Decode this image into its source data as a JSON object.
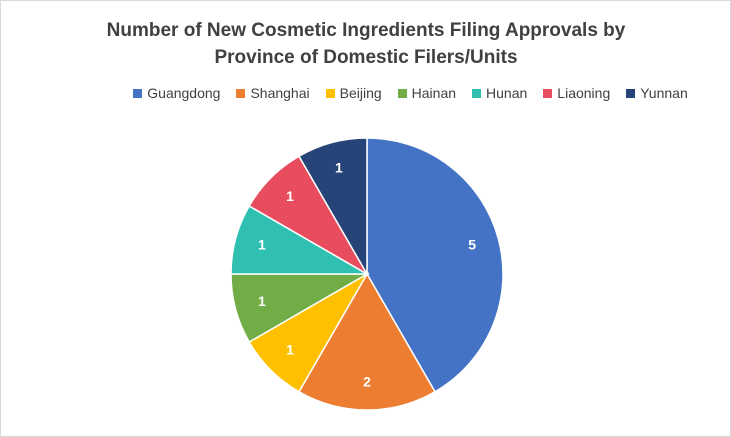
{
  "chart_data": {
    "type": "pie",
    "title": "Number of New Cosmetic Ingredients Filing Approvals by Province of Domestic Filers/Units",
    "categories": [
      "Guangdong",
      "Shanghai",
      "Beijing",
      "Hainan",
      "Hunan",
      "Liaoning",
      "Yunnan"
    ],
    "values": [
      5,
      2,
      1,
      1,
      1,
      1,
      1
    ],
    "colors": [
      "#4472c4",
      "#ed7d31",
      "#ffc000",
      "#70ad47",
      "#2fc0b2",
      "#e84c5f",
      "#264478"
    ],
    "legend": "top"
  }
}
